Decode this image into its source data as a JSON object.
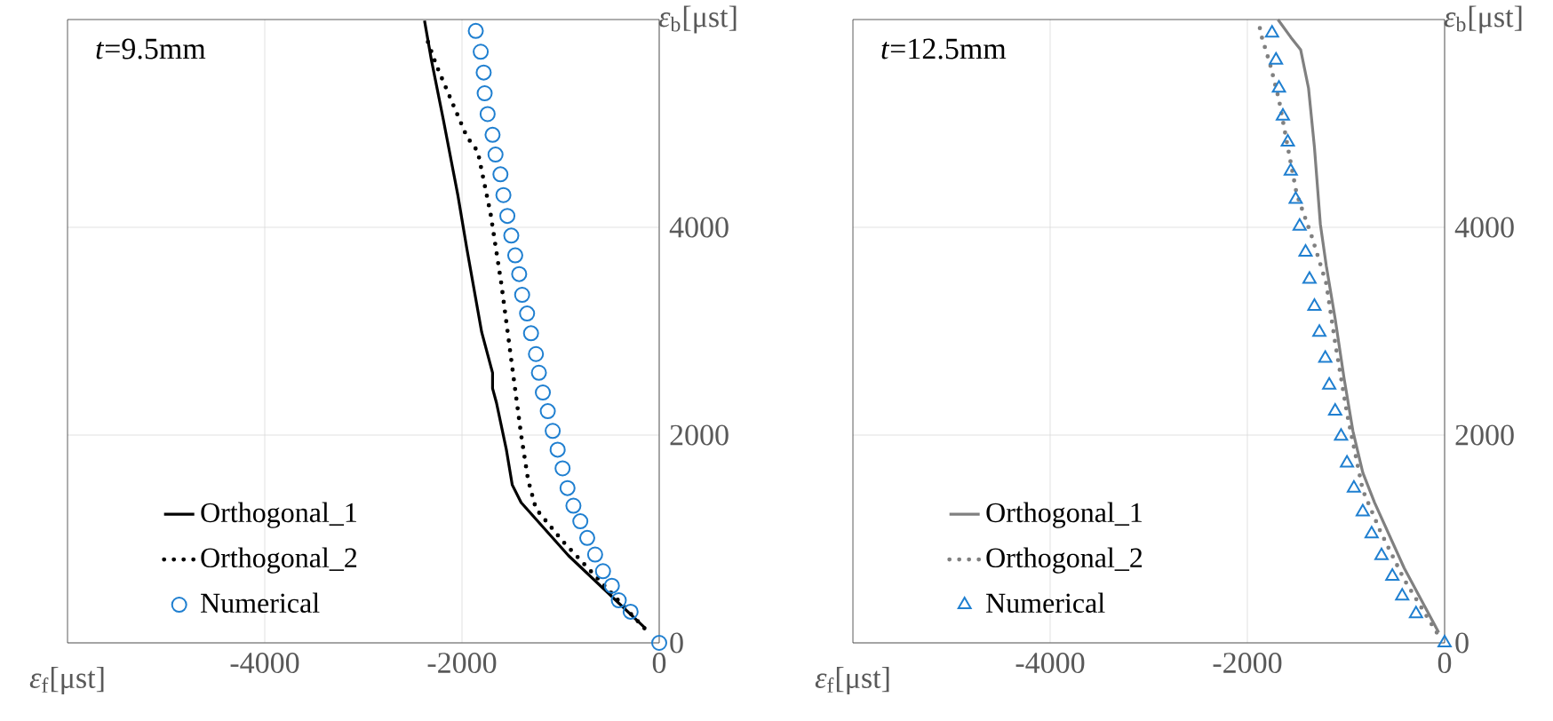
{
  "chart_data": [
    {
      "type": "line",
      "xlabel": "*ε*$_{f}$[μst]",
      "ylabel": "*ε*$_{b}$[μst]",
      "annotations": [
        "*t*=9.5mm"
      ],
      "xlim": [
        -6000,
        0
      ],
      "ylim": [
        0,
        6000
      ],
      "xticks": [
        -4000,
        -2000,
        0
      ],
      "yticks": [
        0,
        2000,
        4000
      ],
      "grid": true,
      "legend": "bottom left",
      "series": [
        {
          "name": "Orthogonal_1",
          "color": "#000000",
          "line_style": "solid",
          "marker": "none",
          "x": [
            -140,
            -920,
            -1400,
            -1490,
            -1550,
            -1650,
            -1690,
            -1690,
            -1800,
            -1950,
            -2040,
            -2190,
            -2310,
            -2380
          ],
          "values": [
            140,
            840,
            1350,
            1520,
            1860,
            2310,
            2450,
            2600,
            2990,
            3790,
            4300,
            5040,
            5610,
            5990
          ]
        },
        {
          "name": "Orthogonal_2",
          "color": "#000000",
          "line_style": "dotted",
          "marker": "none",
          "x": [
            -150,
            -980,
            -1250,
            -1330,
            -1400,
            -1490,
            -1600,
            -1710,
            -1840,
            -1950,
            -2130,
            -2260,
            -2370
          ],
          "values": [
            140,
            980,
            1290,
            1570,
            2000,
            2650,
            3450,
            4130,
            4730,
            4870,
            5270,
            5560,
            5850
          ]
        },
        {
          "name": "Numerical",
          "type": "scatter",
          "color": "#1f7fd0",
          "marker": "circle",
          "x": [
            0,
            -290,
            -410,
            -480,
            -570,
            -650,
            -730,
            -800,
            -870,
            -930,
            -980,
            -1030,
            -1080,
            -1130,
            -1180,
            -1220,
            -1250,
            -1300,
            -1340,
            -1390,
            -1420,
            -1460,
            -1500,
            -1540,
            -1580,
            -1610,
            -1660,
            -1690,
            -1740,
            -1770,
            -1780,
            -1810,
            -1860
          ],
          "values": [
            0,
            300,
            410,
            550,
            690,
            850,
            1010,
            1170,
            1320,
            1490,
            1680,
            1860,
            2040,
            2230,
            2410,
            2600,
            2780,
            2980,
            3170,
            3350,
            3550,
            3730,
            3920,
            4110,
            4310,
            4510,
            4700,
            4890,
            5090,
            5290,
            5490,
            5690,
            5890
          ]
        }
      ]
    },
    {
      "type": "line",
      "xlabel": "*ε*$_{f}$[μst]",
      "ylabel": "*ε*$_{b}$[μst]",
      "annotations": [
        "*t*=12.5mm"
      ],
      "xlim": [
        -6000,
        0
      ],
      "ylim": [
        0,
        6000
      ],
      "xticks": [
        -4000,
        -2000,
        0
      ],
      "yticks": [
        0,
        2000,
        4000
      ],
      "grid": true,
      "legend": "bottom left",
      "series": [
        {
          "name": "Orthogonal_1",
          "color": "#808080",
          "line_style": "solid",
          "marker": "none",
          "x": [
            -60,
            -410,
            -710,
            -830,
            -930,
            -1020,
            -1110,
            -1200,
            -1260,
            -1320,
            -1380,
            -1460,
            -1560,
            -1690
          ],
          "values": [
            100,
            720,
            1350,
            1640,
            2040,
            2550,
            3120,
            3630,
            4030,
            4770,
            5340,
            5710,
            5830,
            6000
          ]
        },
        {
          "name": "Orthogonal_2",
          "color": "#808080",
          "line_style": "dotted",
          "marker": "none",
          "x": [
            -80,
            -410,
            -650,
            -830,
            -990,
            -1110,
            -1200,
            -1350,
            -1500,
            -1590,
            -1680,
            -1770,
            -1860,
            -1890
          ],
          "values": [
            100,
            610,
            1070,
            1470,
            2210,
            2890,
            3460,
            3920,
            4320,
            4770,
            5230,
            5570,
            5850,
            6000
          ]
        },
        {
          "name": "Numerical",
          "type": "scatter",
          "color": "#1f7fd0",
          "marker": "triangle",
          "x": [
            0,
            -290,
            -430,
            -530,
            -640,
            -740,
            -830,
            -920,
            -990,
            -1050,
            -1110,
            -1170,
            -1210,
            -1270,
            -1320,
            -1370,
            -1410,
            -1470,
            -1510,
            -1560,
            -1590,
            -1640,
            -1680,
            -1710,
            -1750
          ],
          "values": [
            0,
            280,
            450,
            640,
            840,
            1050,
            1260,
            1490,
            1730,
            1990,
            2230,
            2480,
            2740,
            2990,
            3240,
            3500,
            3760,
            4010,
            4270,
            4540,
            4820,
            5070,
            5340,
            5610,
            5870
          ]
        }
      ]
    }
  ]
}
